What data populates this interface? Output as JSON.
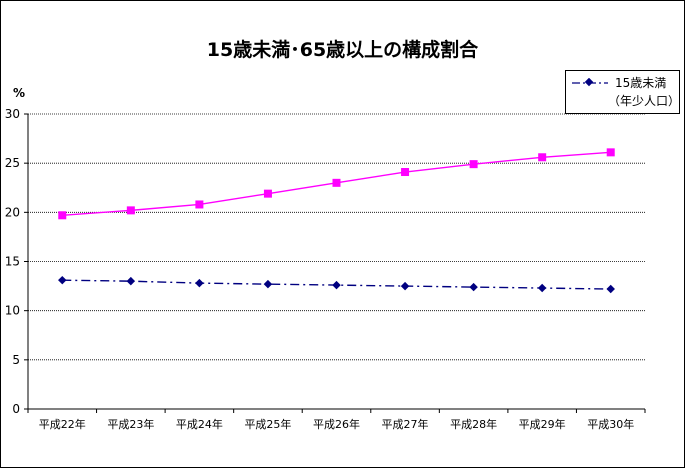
{
  "chart_data": {
    "type": "line",
    "title": "15歳未満･65歳以上の構成割合",
    "ylabel": "%",
    "xlabel": "",
    "categories": [
      "平成22年",
      "平成23年",
      "平成24年",
      "平成25年",
      "平成26年",
      "平成27年",
      "平成28年",
      "平成29年",
      "平成30年"
    ],
    "ylim": [
      0,
      30
    ],
    "yticks": [
      "0",
      "5",
      "10",
      "15",
      "20",
      "25",
      "30"
    ],
    "grid": true,
    "legend_position": "top-right",
    "series": [
      {
        "name": "15歳未満",
        "name_line2": "（年少人口）",
        "color": "#000080",
        "marker": "diamond",
        "line_style": "dash-dot",
        "values": [
          13.1,
          13.0,
          12.8,
          12.7,
          12.6,
          12.5,
          12.4,
          12.3,
          12.2
        ]
      },
      {
        "color": "#FF00FF",
        "marker": "square",
        "line_style": "solid",
        "values": [
          19.7,
          20.2,
          20.8,
          21.9,
          23.0,
          24.1,
          24.9,
          25.6,
          26.1
        ]
      }
    ]
  }
}
